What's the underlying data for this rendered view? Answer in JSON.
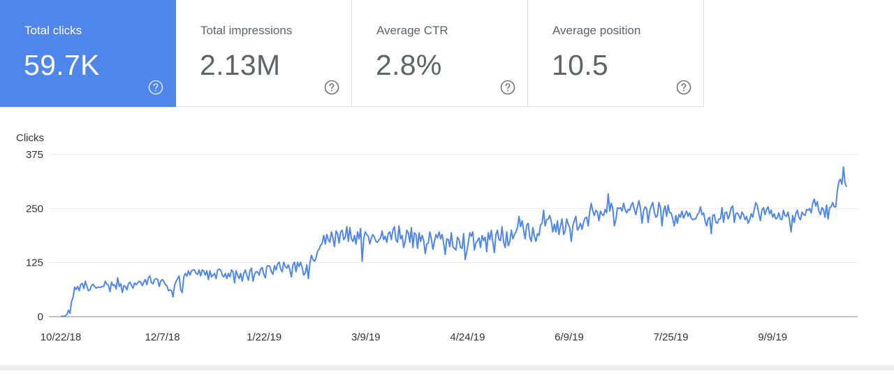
{
  "colors": {
    "accent": "#4f86ec",
    "line": "#4f86ec",
    "gridline": "#e8e8e8",
    "axis": "#333333",
    "card_text": "#5f6368"
  },
  "cards": [
    {
      "label": "Total clicks",
      "value": "59.7K",
      "active": true,
      "icon": "help-circle-icon"
    },
    {
      "label": "Total impressions",
      "value": "2.13M",
      "active": false,
      "icon": "help-circle-icon"
    },
    {
      "label": "Average CTR",
      "value": "2.8%",
      "active": false,
      "icon": "help-circle-icon"
    },
    {
      "label": "Average position",
      "value": "10.5",
      "active": false,
      "icon": "help-circle-icon"
    }
  ],
  "chart_data": {
    "type": "line",
    "ylabel": "Clicks",
    "xlabel": "",
    "ylim": [
      0,
      375
    ],
    "yticks": [
      0,
      125,
      250,
      375
    ],
    "x_tick_labels": [
      "10/22/18",
      "12/7/18",
      "1/22/19",
      "3/9/19",
      "4/24/19",
      "6/9/19",
      "7/25/19",
      "9/9/19"
    ],
    "grid": true,
    "x_start": "10/22/18",
    "x_step_days": 1,
    "series": [
      {
        "values": [
          1,
          1,
          1,
          2,
          5,
          15,
          8,
          35,
          45,
          68,
          63,
          70,
          60,
          75,
          77,
          65,
          82,
          70,
          60,
          62,
          72,
          75,
          70,
          66,
          68,
          68,
          68,
          70,
          70,
          82,
          75,
          73,
          58,
          80,
          72,
          74,
          64,
          90,
          70,
          76,
          56,
          72,
          70,
          62,
          76,
          80,
          72,
          66,
          78,
          74,
          78,
          82,
          80,
          72,
          80,
          86,
          74,
          90,
          94,
          78,
          76,
          86,
          88,
          86,
          70,
          82,
          86,
          82,
          74,
          72,
          60,
          62,
          60,
          46,
          72,
          82,
          88,
          94,
          62,
          56,
          92,
          100,
          94,
          106,
          96,
          106,
          108,
          108,
          100,
          98,
          108,
          94,
          108,
          106,
          96,
          106,
          86,
          106,
          92,
          96,
          100,
          88,
          108,
          110,
          108,
          96,
          92,
          100,
          88,
          100,
          92,
          108,
          104,
          78,
          106,
          96,
          88,
          100,
          82,
          100,
          108,
          96,
          84,
          106,
          112,
          82,
          98,
          104,
          104,
          96,
          110,
          114,
          98,
          90,
          116,
          118,
          116,
          104,
          98,
          118,
          108,
          122,
          126,
          110,
          104,
          126,
          116,
          112,
          120,
          108,
          92,
          120,
          126,
          104,
          126,
          116,
          126,
          114,
          96,
          100,
          120,
          88,
          124,
          142,
          132,
          128,
          136,
          152,
          156,
          165,
          170,
          188,
          168,
          190,
          178,
          172,
          196,
          182,
          162,
          198,
          192,
          170,
          196,
          200,
          178,
          184,
          208,
          174,
          206,
          180,
          174,
          188,
          168,
          196,
          180,
          204,
          128,
          180,
          196,
          190,
          186,
          168,
          182,
          190,
          184,
          174,
          172,
          178,
          182,
          198,
          178,
          186,
          172,
          192,
          196,
          178,
          200,
          208,
          178,
          172,
          210,
          180,
          188,
          160,
          174,
          200,
          194,
          172,
          206,
          160,
          194,
          190,
          158,
          194,
          174,
          188,
          176,
          146,
          168,
          170,
          196,
          180,
          156,
          174,
          190,
          182,
          196,
          180,
          190,
          170,
          144,
          180,
          178,
          162,
          194,
          162,
          158,
          154,
          184,
          178,
          160,
          158,
          192,
          132,
          150,
          170,
          194,
          186,
          196,
          154,
          170,
          176,
          182,
          160,
          188,
          176,
          184,
          150,
          194,
          178,
          200,
          172,
          148,
          190,
          200,
          178,
          176,
          208,
          172,
          160,
          196,
          164,
          174,
          200,
          180,
          190,
          196,
          206,
          232,
          208,
          222,
          200,
          180,
          212,
          216,
          184,
          174,
          206,
          186,
          174,
          192,
          188,
          212,
          216,
          246,
          210,
          224,
          226,
          234,
          220,
          196,
          214,
          196,
          222,
          190,
          210,
          226,
          190,
          198,
          226,
          214,
          206,
          174,
          210,
          222,
          232,
          200,
          206,
          216,
          202,
          218,
          228,
          230,
          210,
          242,
          262,
          244,
          234,
          246,
          242,
          222,
          244,
          236,
          234,
          248,
          240,
          284,
          244,
          262,
          250,
          210,
          224,
          252,
          250,
          252,
          244,
          262,
          248,
          240,
          248,
          246,
          258,
          264,
          248,
          236,
          254,
          268,
          250,
          216,
          244,
          254,
          250,
          218,
          244,
          256,
          264,
          242,
          230,
          234,
          264,
          252,
          210,
          244,
          256,
          232,
          258,
          240,
          240,
          226,
          210,
          234,
          216,
          236,
          230,
          244,
          228,
          236,
          244,
          232,
          240,
          228,
          224,
          226,
          226,
          236,
          240,
          254,
          236,
          240,
          222,
          210,
          226,
          230,
          192,
          234,
          236,
          218,
          216,
          226,
          226,
          252,
          218,
          240,
          242,
          226,
          236,
          252,
          256,
          218,
          238,
          240,
          234,
          226,
          242,
          236,
          224,
          232,
          216,
          224,
          238,
          230,
          248,
          264,
          256,
          238,
          222,
          246,
          252,
          236,
          248,
          254,
          238,
          246,
          230,
          238,
          226,
          228,
          240,
          226,
          224,
          246,
          234,
          232,
          242,
          222,
          196,
          234,
          218,
          238,
          246,
          230,
          224,
          242,
          236,
          234,
          248,
          246,
          250,
          240,
          262,
          272,
          256,
          266,
          244,
          236,
          252,
          248,
          230,
          258,
          226,
          252,
          254,
          264,
          254,
          254,
          290,
          312,
          318,
          306,
          346,
          310,
          300
        ]
      }
    ]
  }
}
